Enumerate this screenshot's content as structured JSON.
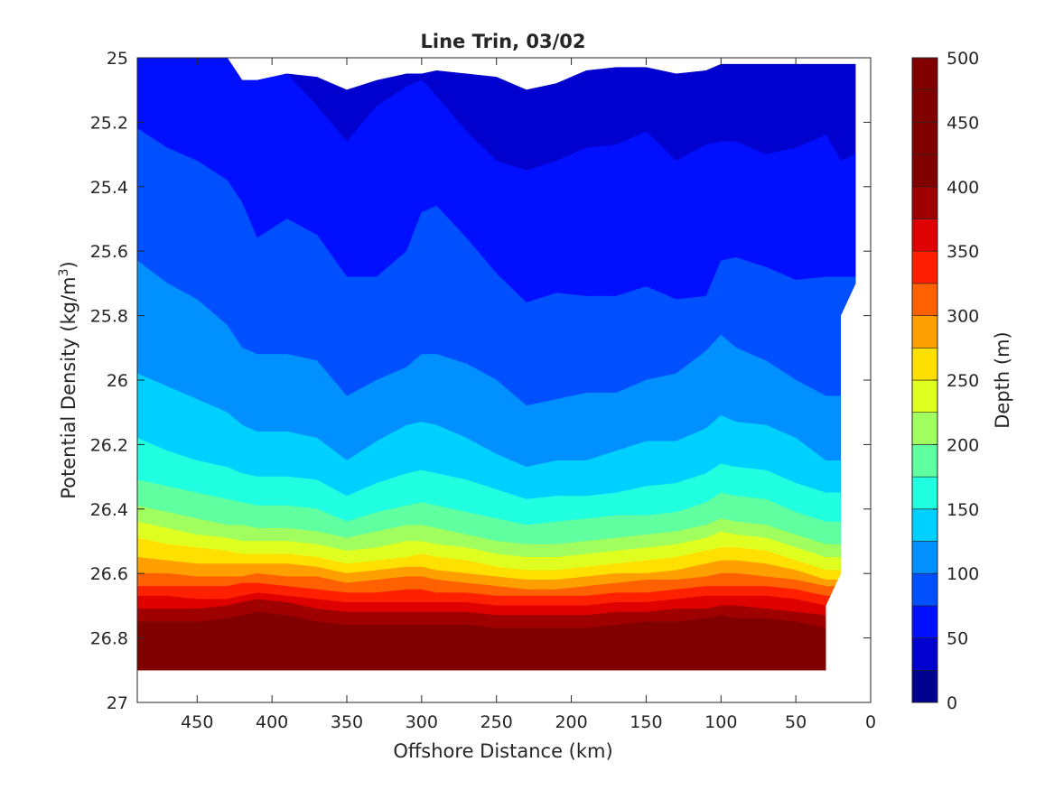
{
  "chart_data": {
    "type": "contour",
    "title": "Line Trin, 03/02",
    "xlabel": "Offshore Distance (km)",
    "ylabel_main": "Potential Density (kg/m",
    "ylabel_sup": "3",
    "ylabel_close": ")",
    "xlim": [
      490,
      0
    ],
    "x_reversed": true,
    "ylim": [
      25,
      27
    ],
    "y_reversed": true,
    "x_ticks": [
      450,
      400,
      350,
      300,
      250,
      200,
      150,
      100,
      50,
      0
    ],
    "x_tick_labels": [
      "450",
      "400",
      "350",
      "300",
      "250",
      "200",
      "150",
      "100",
      "50",
      "0"
    ],
    "y_ticks": [
      25,
      25.2,
      25.4,
      25.6,
      25.8,
      26,
      26.2,
      26.4,
      26.6,
      26.8,
      27
    ],
    "y_tick_labels": [
      "25",
      "25.2",
      "25.4",
      "25.6",
      "25.8",
      "26",
      "26.2",
      "26.4",
      "26.6",
      "26.8",
      "27"
    ],
    "colorbar": {
      "label": "Depth (m)",
      "range": [
        0,
        500
      ],
      "step": 25,
      "ticks": [
        0,
        50,
        100,
        150,
        200,
        250,
        300,
        350,
        400,
        450,
        500
      ],
      "tick_labels": [
        "0",
        "50",
        "100",
        "150",
        "200",
        "250",
        "300",
        "350",
        "400",
        "450",
        "500"
      ],
      "colormap": "jet",
      "colors": [
        "#00008f",
        "#0000cf",
        "#0010ff",
        "#0050ff",
        "#0090ff",
        "#00d0ff",
        "#20ffdf",
        "#60ff9f",
        "#a0ff5f",
        "#dfff20",
        "#ffe000",
        "#ffa000",
        "#ff6000",
        "#ff2000",
        "#df0000",
        "#9f0000",
        "#800000"
      ]
    },
    "data_extent": {
      "density_bottom": 26.9,
      "shoreward_edge_km": [
        [
          25.0,
          10
        ],
        [
          25.7,
          10
        ],
        [
          25.8,
          20
        ],
        [
          26.6,
          20
        ],
        [
          26.7,
          30
        ],
        [
          26.9,
          30
        ]
      ]
    },
    "x": [
      490,
      470,
      450,
      430,
      420,
      410,
      390,
      370,
      350,
      330,
      310,
      300,
      290,
      270,
      250,
      230,
      210,
      190,
      170,
      150,
      130,
      110,
      100,
      90,
      70,
      50,
      30,
      20,
      10
    ],
    "contours": [
      {
        "level": 25,
        "density": [
          25.0,
          25.0,
          25.0,
          25.0,
          25.07,
          25.07,
          25.05,
          25.06,
          25.1,
          25.07,
          25.05,
          25.05,
          25.04,
          25.05,
          25.06,
          25.1,
          25.08,
          25.04,
          25.03,
          25.03,
          25.05,
          25.04,
          25.02,
          25.02,
          25.02,
          25.02,
          25.02,
          25.02,
          25.02
        ]
      },
      {
        "level": 50,
        "density": [
          25.0,
          25.0,
          25.0,
          25.0,
          25.07,
          25.07,
          25.05,
          25.15,
          25.26,
          25.15,
          25.09,
          25.07,
          25.12,
          25.23,
          25.32,
          25.35,
          25.32,
          25.28,
          25.27,
          25.23,
          25.32,
          25.27,
          25.26,
          25.26,
          25.3,
          25.28,
          25.24,
          25.32,
          25.3
        ]
      },
      {
        "level": 75,
        "density": [
          25.22,
          25.28,
          25.32,
          25.38,
          25.45,
          25.56,
          25.5,
          25.55,
          25.68,
          25.68,
          25.6,
          25.48,
          25.46,
          25.56,
          25.67,
          25.76,
          25.73,
          25.74,
          25.74,
          25.71,
          25.75,
          25.74,
          25.63,
          25.62,
          25.65,
          25.69,
          25.68,
          25.68,
          25.68
        ]
      },
      {
        "level": 100,
        "density": [
          25.63,
          25.7,
          25.75,
          25.83,
          25.9,
          25.92,
          25.92,
          25.94,
          26.05,
          26.0,
          25.96,
          25.92,
          25.92,
          25.95,
          26.0,
          26.08,
          26.06,
          26.04,
          26.04,
          26.0,
          25.98,
          25.91,
          25.86,
          25.9,
          25.94,
          26.0,
          26.05,
          26.05,
          26.05
        ]
      },
      {
        "level": 125,
        "density": [
          25.98,
          26.02,
          26.06,
          26.1,
          26.14,
          26.16,
          26.16,
          26.18,
          26.25,
          26.19,
          26.14,
          26.13,
          26.14,
          26.18,
          26.23,
          26.27,
          26.25,
          26.25,
          26.22,
          26.19,
          26.19,
          26.15,
          26.11,
          26.13,
          26.14,
          26.18,
          26.25,
          26.25,
          26.25
        ]
      },
      {
        "level": 150,
        "density": [
          26.18,
          26.22,
          26.25,
          26.27,
          26.29,
          26.3,
          26.3,
          26.31,
          26.36,
          26.32,
          26.29,
          26.28,
          26.29,
          26.31,
          26.34,
          26.37,
          26.36,
          26.36,
          26.35,
          26.33,
          26.32,
          26.29,
          26.26,
          26.27,
          26.28,
          26.32,
          26.35,
          26.35,
          26.35
        ]
      },
      {
        "level": 175,
        "density": [
          26.31,
          26.33,
          26.35,
          26.37,
          26.38,
          26.39,
          26.39,
          26.4,
          26.44,
          26.41,
          26.39,
          26.38,
          26.39,
          26.41,
          26.43,
          26.45,
          26.44,
          26.43,
          26.42,
          26.42,
          26.41,
          26.38,
          26.35,
          26.36,
          26.37,
          26.41,
          26.44,
          26.44,
          26.44
        ]
      },
      {
        "level": 200,
        "density": [
          26.39,
          26.41,
          26.43,
          26.45,
          26.45,
          26.46,
          26.46,
          26.47,
          26.49,
          26.47,
          26.45,
          26.45,
          26.46,
          26.48,
          26.5,
          26.51,
          26.51,
          26.5,
          26.49,
          26.48,
          26.47,
          26.45,
          26.43,
          26.44,
          26.45,
          26.48,
          26.51,
          26.51,
          26.51
        ]
      },
      {
        "level": 225,
        "density": [
          26.44,
          26.46,
          26.48,
          26.49,
          26.5,
          26.5,
          26.5,
          26.51,
          26.53,
          26.52,
          26.5,
          26.5,
          26.51,
          26.52,
          26.54,
          26.55,
          26.55,
          26.54,
          26.53,
          26.52,
          26.51,
          26.49,
          26.47,
          26.48,
          26.49,
          26.52,
          26.55,
          26.55,
          26.55
        ]
      },
      {
        "level": 250,
        "density": [
          26.49,
          26.51,
          26.52,
          26.53,
          26.54,
          26.54,
          26.54,
          26.55,
          26.57,
          26.56,
          26.55,
          26.54,
          26.55,
          26.56,
          26.58,
          26.59,
          26.59,
          26.58,
          26.57,
          26.56,
          26.55,
          26.53,
          26.52,
          26.52,
          26.53,
          26.56,
          26.59,
          26.59,
          26.59
        ]
      },
      {
        "level": 275,
        "density": [
          26.55,
          26.56,
          26.57,
          26.57,
          26.57,
          26.57,
          26.57,
          26.58,
          26.6,
          26.59,
          26.58,
          26.58,
          26.59,
          26.6,
          26.61,
          26.62,
          26.62,
          26.61,
          26.6,
          26.6,
          26.59,
          26.57,
          26.56,
          26.56,
          26.57,
          26.59,
          26.62,
          26.62,
          26.62
        ]
      },
      {
        "level": 300,
        "density": [
          26.6,
          26.6,
          26.61,
          26.61,
          26.61,
          26.6,
          26.61,
          26.61,
          26.63,
          26.62,
          26.61,
          26.61,
          26.62,
          26.63,
          26.64,
          26.65,
          26.65,
          26.64,
          26.63,
          26.62,
          26.62,
          26.61,
          26.6,
          26.6,
          26.61,
          26.62,
          26.64,
          26.64,
          26.64
        ]
      },
      {
        "level": 325,
        "density": [
          26.64,
          26.64,
          26.64,
          26.64,
          26.63,
          26.63,
          26.64,
          26.65,
          26.66,
          26.66,
          26.65,
          26.65,
          26.66,
          26.66,
          26.67,
          26.67,
          26.67,
          26.67,
          26.66,
          26.66,
          26.65,
          26.64,
          26.64,
          26.64,
          26.64,
          26.65,
          26.67,
          26.67,
          26.67
        ]
      },
      {
        "level": 350,
        "density": [
          26.67,
          26.67,
          26.68,
          26.68,
          26.67,
          26.66,
          26.67,
          26.68,
          26.69,
          26.69,
          26.69,
          26.69,
          26.69,
          26.69,
          26.7,
          26.7,
          26.7,
          26.7,
          26.69,
          26.69,
          26.68,
          26.67,
          26.67,
          26.67,
          26.67,
          26.68,
          26.7,
          26.7,
          26.7
        ]
      },
      {
        "level": 375,
        "density": [
          26.71,
          26.71,
          26.71,
          26.7,
          26.69,
          26.68,
          26.69,
          26.71,
          26.72,
          26.72,
          26.72,
          26.72,
          26.72,
          26.72,
          26.73,
          26.73,
          26.73,
          26.73,
          26.72,
          26.72,
          26.71,
          26.71,
          26.7,
          26.7,
          26.71,
          26.72,
          26.73,
          26.73,
          26.73
        ]
      },
      {
        "level": 400,
        "density": [
          26.75,
          26.75,
          26.75,
          26.74,
          26.73,
          26.72,
          26.73,
          26.75,
          26.76,
          26.76,
          26.76,
          26.76,
          26.76,
          26.76,
          26.77,
          26.77,
          26.77,
          26.77,
          26.76,
          26.75,
          26.75,
          26.74,
          26.73,
          26.74,
          26.74,
          26.75,
          26.77,
          26.77,
          26.77
        ]
      },
      {
        "level": 425,
        "density": [
          26.79,
          26.79,
          26.79,
          26.78,
          26.77,
          26.76,
          26.77,
          26.79,
          26.8,
          26.8,
          26.8,
          26.8,
          26.8,
          26.8,
          26.81,
          26.81,
          26.81,
          26.81,
          26.8,
          26.79,
          26.79,
          26.78,
          26.77,
          26.78,
          26.78,
          26.79,
          26.81,
          26.81,
          26.81
        ]
      },
      {
        "level": 450,
        "density": [
          26.83,
          26.83,
          26.83,
          26.82,
          26.81,
          26.8,
          26.81,
          26.83,
          26.84,
          26.84,
          26.84,
          26.84,
          26.84,
          26.84,
          26.85,
          26.85,
          26.85,
          26.85,
          26.84,
          26.84,
          26.83,
          26.82,
          26.82,
          26.82,
          26.82,
          26.83,
          26.85,
          26.85,
          26.85
        ]
      },
      {
        "level": 475,
        "density": [
          26.87,
          26.87,
          26.87,
          26.86,
          26.85,
          26.84,
          26.85,
          26.87,
          26.88,
          26.88,
          26.88,
          26.88,
          26.88,
          26.88,
          26.89,
          26.89,
          26.89,
          26.89,
          26.88,
          26.88,
          26.87,
          26.87,
          26.86,
          26.86,
          26.87,
          26.87,
          26.89,
          26.89,
          26.89
        ]
      },
      {
        "level": 500,
        "density": [
          26.9,
          26.9,
          26.9,
          26.89,
          26.88,
          26.88,
          26.89,
          26.9,
          26.9,
          26.9,
          26.9,
          26.9,
          26.9,
          26.9,
          26.9,
          26.9,
          26.9,
          26.9,
          26.9,
          26.9,
          26.9,
          26.9,
          26.89,
          26.89,
          26.9,
          26.9,
          26.9,
          26.9,
          26.9
        ]
      }
    ]
  }
}
